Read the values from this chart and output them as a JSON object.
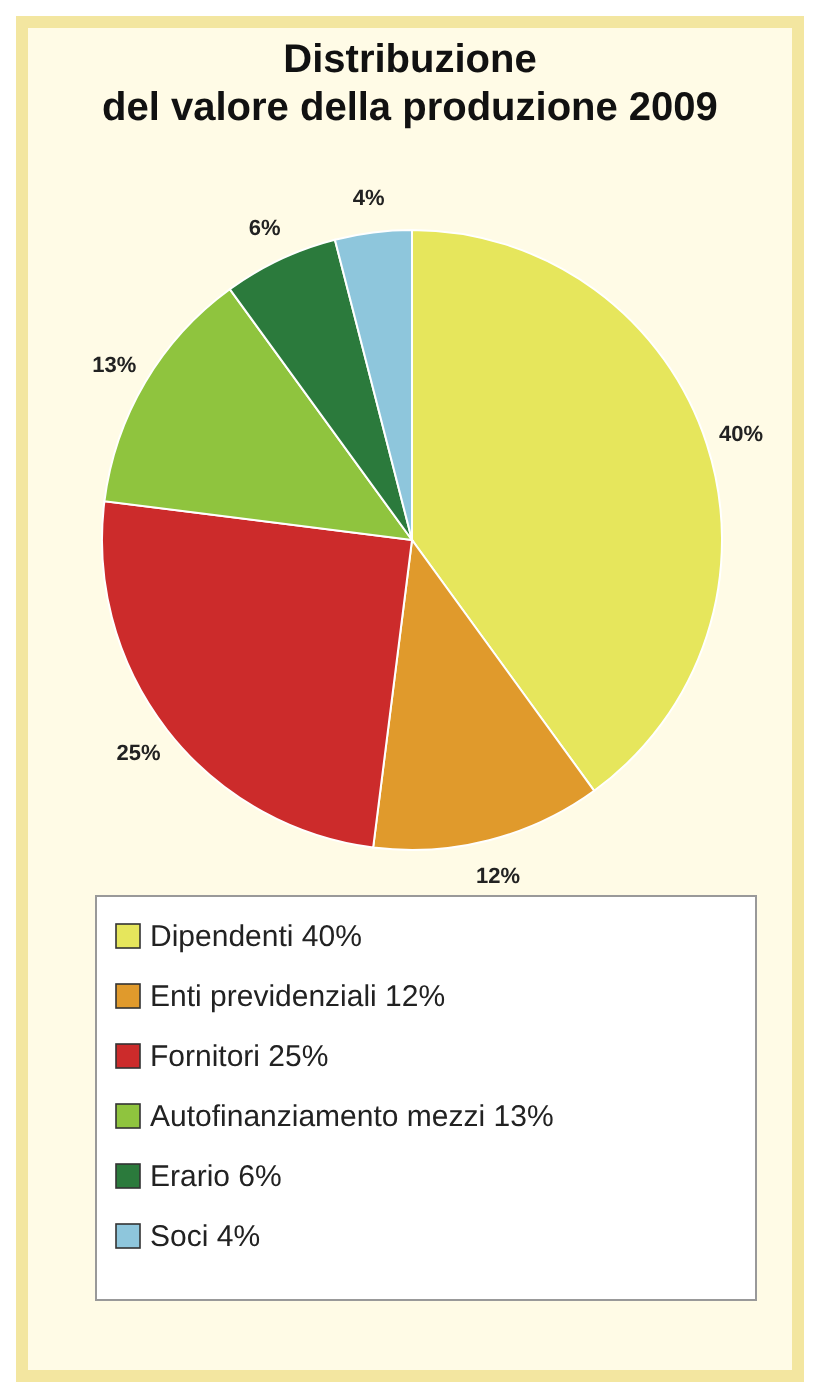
{
  "chart_data": {
    "type": "pie",
    "title": "Distribuzione\ndel valore della produzione 2009",
    "categories": [
      "Dipendenti 40%",
      "Enti previdenziali 12%",
      "Fornitori 25%",
      "Autofinanziamento mezzi 13%",
      "Erario 6%",
      "Soci 4%"
    ],
    "values": [
      40,
      12,
      25,
      13,
      6,
      4
    ],
    "value_labels": [
      "40%",
      "12%",
      "25%",
      "13%",
      "6%",
      "4%"
    ],
    "colors": [
      "#e6e65c",
      "#e09a2c",
      "#cc2b2b",
      "#8fc43e",
      "#2b7a3c",
      "#8ec6dc"
    ],
    "legend": "bottom"
  }
}
